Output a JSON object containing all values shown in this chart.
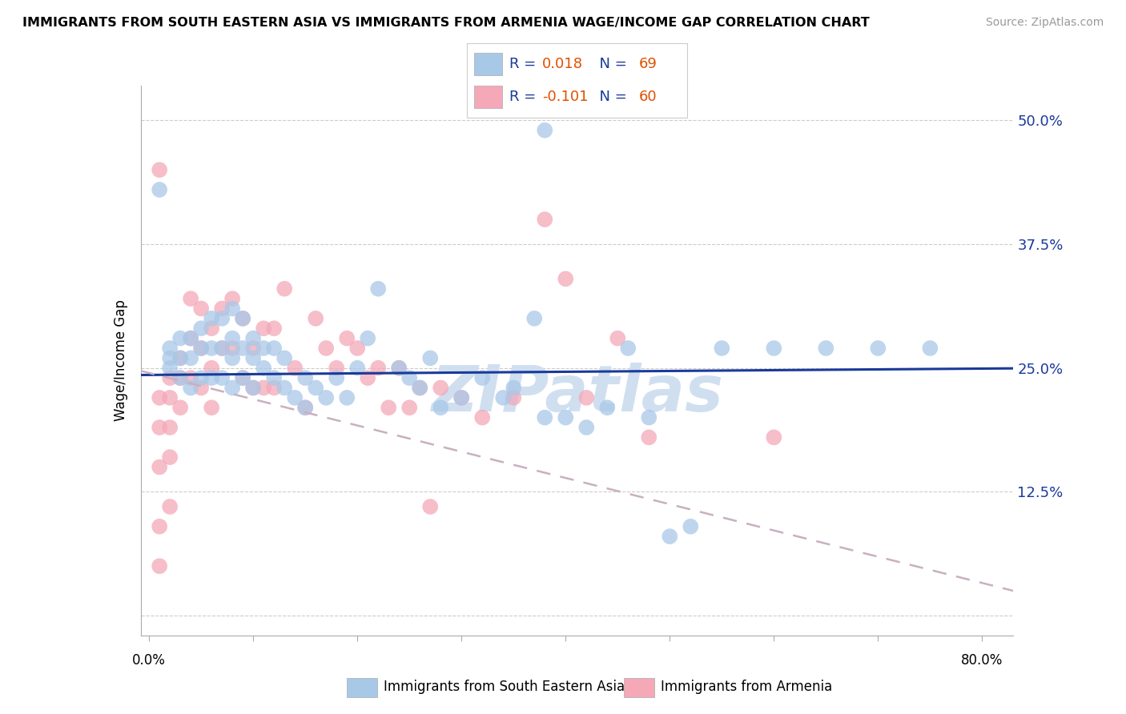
{
  "title": "IMMIGRANTS FROM SOUTH EASTERN ASIA VS IMMIGRANTS FROM ARMENIA WAGE/INCOME GAP CORRELATION CHART",
  "source": "Source: ZipAtlas.com",
  "ylabel": "Wage/Income Gap",
  "yticks": [
    0.0,
    0.125,
    0.25,
    0.375,
    0.5
  ],
  "ytick_labels": [
    "",
    "12.5%",
    "25.0%",
    "37.5%",
    "50.0%"
  ],
  "xmin": -0.008,
  "xmax": 0.83,
  "ymin": -0.02,
  "ymax": 0.535,
  "blue_R": 0.018,
  "blue_N": 69,
  "pink_R": -0.101,
  "pink_N": 60,
  "blue_color": "#a8c8e8",
  "pink_color": "#f4a8b8",
  "blue_line_color": "#1a3a9a",
  "pink_line_color": "#c8b0c0",
  "legend_text_color": "#1a3a9a",
  "legend_value_color": "#e05000",
  "watermark": "ZIPatlas",
  "watermark_color": "#d0dff0",
  "blue_line_intercept": 0.243,
  "blue_line_slope": 0.008,
  "pink_line_intercept": 0.245,
  "pink_line_slope": -0.265,
  "blue_scatter_x": [
    0.01,
    0.02,
    0.02,
    0.02,
    0.03,
    0.03,
    0.03,
    0.04,
    0.04,
    0.04,
    0.05,
    0.05,
    0.05,
    0.06,
    0.06,
    0.06,
    0.07,
    0.07,
    0.07,
    0.08,
    0.08,
    0.08,
    0.08,
    0.09,
    0.09,
    0.09,
    0.1,
    0.1,
    0.1,
    0.11,
    0.11,
    0.12,
    0.12,
    0.13,
    0.13,
    0.14,
    0.15,
    0.15,
    0.16,
    0.17,
    0.18,
    0.19,
    0.2,
    0.21,
    0.22,
    0.24,
    0.25,
    0.26,
    0.27,
    0.28,
    0.3,
    0.32,
    0.34,
    0.35,
    0.37,
    0.38,
    0.4,
    0.42,
    0.44,
    0.46,
    0.48,
    0.5,
    0.52,
    0.55,
    0.6,
    0.65,
    0.7,
    0.75,
    0.38
  ],
  "blue_scatter_y": [
    0.43,
    0.26,
    0.27,
    0.25,
    0.28,
    0.26,
    0.24,
    0.28,
    0.26,
    0.23,
    0.29,
    0.27,
    0.24,
    0.3,
    0.27,
    0.24,
    0.3,
    0.27,
    0.24,
    0.31,
    0.28,
    0.26,
    0.23,
    0.3,
    0.27,
    0.24,
    0.28,
    0.26,
    0.23,
    0.27,
    0.25,
    0.27,
    0.24,
    0.26,
    0.23,
    0.22,
    0.24,
    0.21,
    0.23,
    0.22,
    0.24,
    0.22,
    0.25,
    0.28,
    0.33,
    0.25,
    0.24,
    0.23,
    0.26,
    0.21,
    0.22,
    0.24,
    0.22,
    0.23,
    0.3,
    0.2,
    0.2,
    0.19,
    0.21,
    0.27,
    0.2,
    0.08,
    0.09,
    0.27,
    0.27,
    0.27,
    0.27,
    0.27,
    0.49
  ],
  "pink_scatter_x": [
    0.01,
    0.01,
    0.01,
    0.01,
    0.01,
    0.02,
    0.02,
    0.02,
    0.02,
    0.02,
    0.03,
    0.03,
    0.03,
    0.04,
    0.04,
    0.04,
    0.05,
    0.05,
    0.05,
    0.06,
    0.06,
    0.06,
    0.07,
    0.07,
    0.08,
    0.08,
    0.09,
    0.09,
    0.1,
    0.1,
    0.11,
    0.11,
    0.12,
    0.12,
    0.13,
    0.14,
    0.15,
    0.16,
    0.17,
    0.18,
    0.19,
    0.2,
    0.21,
    0.22,
    0.23,
    0.24,
    0.25,
    0.26,
    0.27,
    0.28,
    0.3,
    0.32,
    0.35,
    0.38,
    0.4,
    0.42,
    0.45,
    0.48,
    0.6,
    0.01
  ],
  "pink_scatter_y": [
    0.22,
    0.19,
    0.15,
    0.09,
    0.05,
    0.24,
    0.22,
    0.19,
    0.16,
    0.11,
    0.26,
    0.24,
    0.21,
    0.32,
    0.28,
    0.24,
    0.31,
    0.27,
    0.23,
    0.29,
    0.25,
    0.21,
    0.31,
    0.27,
    0.32,
    0.27,
    0.3,
    0.24,
    0.27,
    0.23,
    0.29,
    0.23,
    0.29,
    0.23,
    0.33,
    0.25,
    0.21,
    0.3,
    0.27,
    0.25,
    0.28,
    0.27,
    0.24,
    0.25,
    0.21,
    0.25,
    0.21,
    0.23,
    0.11,
    0.23,
    0.22,
    0.2,
    0.22,
    0.4,
    0.34,
    0.22,
    0.28,
    0.18,
    0.18,
    0.45
  ]
}
